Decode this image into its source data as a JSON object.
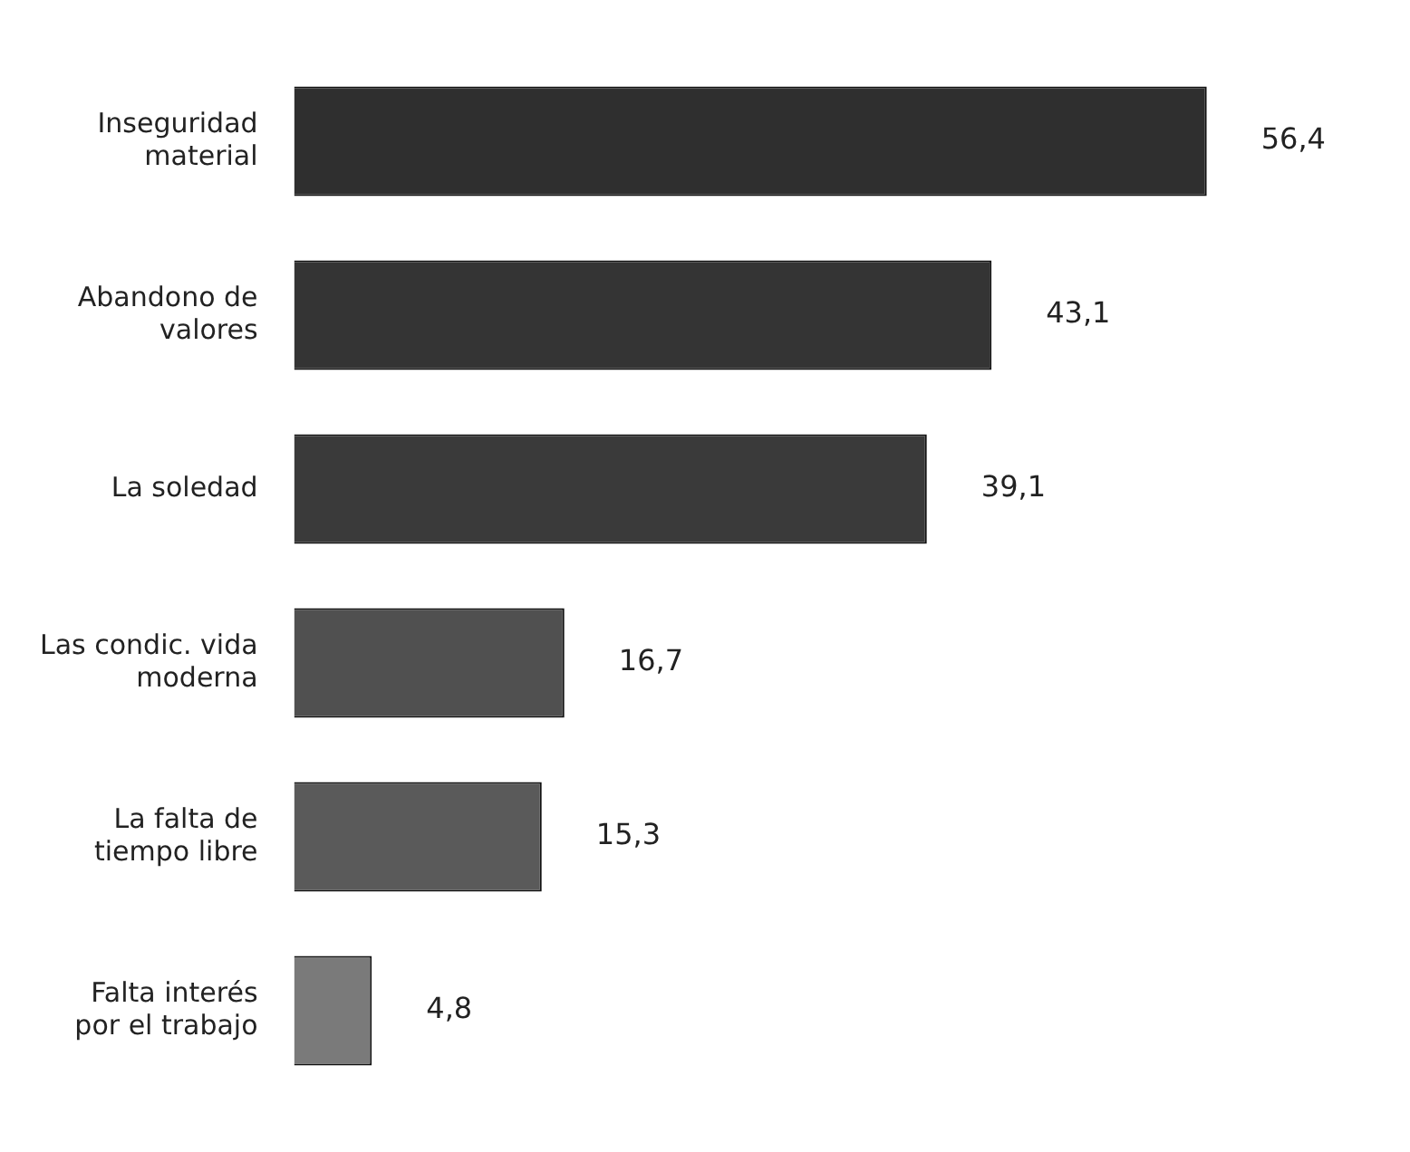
{
  "chart_data": {
    "type": "bar",
    "orientation": "horizontal",
    "categories": [
      "Inseguridad material",
      "Abandono de valores",
      "La soledad",
      "Las condic. vida moderna",
      "La falta de tiempo libre",
      "Falta interés por el trabajo"
    ],
    "values": [
      56.4,
      43.1,
      39.1,
      16.7,
      15.3,
      4.8
    ],
    "colors": [
      "#2f2f2f",
      "#343434",
      "#3a3a3a",
      "#505050",
      "#5a5a5a",
      "#7a7a7a"
    ],
    "value_labels": [
      "56,4",
      "43,1",
      "39,1",
      "16,7",
      "15,3",
      "4,8"
    ],
    "legend": false
  }
}
